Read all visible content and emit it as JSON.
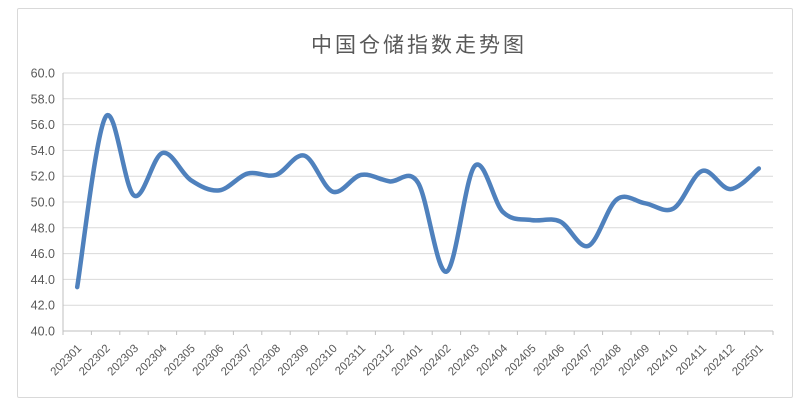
{
  "chart": {
    "title": "中国仓储指数走势图",
    "colors": {
      "line": "#4F81BD",
      "gridline": "#D9D9D9",
      "axis": "#BFBFBF",
      "tick_text": "#595959",
      "title_text": "#595959",
      "frame_border": "#D9D9D9",
      "background": "#FFFFFF"
    }
  },
  "chart_data": {
    "type": "line",
    "title": "中国仓储指数走势图",
    "categories": [
      "202301",
      "202302",
      "202303",
      "202304",
      "202305",
      "202306",
      "202307",
      "202308",
      "202309",
      "202310",
      "202311",
      "202312",
      "202401",
      "202402",
      "202403",
      "202404",
      "202405",
      "202406",
      "202407",
      "202408",
      "202409",
      "202410",
      "202411",
      "202412",
      "202501"
    ],
    "series": [
      {
        "name": "中国仓储指数",
        "values": [
          43.4,
          56.6,
          50.5,
          53.8,
          51.7,
          50.9,
          52.2,
          52.1,
          53.6,
          50.8,
          52.1,
          51.6,
          51.5,
          44.6,
          52.8,
          49.2,
          48.6,
          48.5,
          46.6,
          50.2,
          49.9,
          49.5,
          52.4,
          51.0,
          52.6
        ]
      }
    ],
    "xlabel": "",
    "ylabel": "",
    "ylim": [
      40.0,
      60.0
    ],
    "ytick_step": 2.0,
    "ytick_labels": [
      "40.0",
      "42.0",
      "44.0",
      "46.0",
      "48.0",
      "50.0",
      "52.0",
      "54.0",
      "56.0",
      "58.0",
      "60.0"
    ],
    "xtick_rotation_deg": 45,
    "grid": true,
    "legend": false,
    "smooth_line": true
  }
}
